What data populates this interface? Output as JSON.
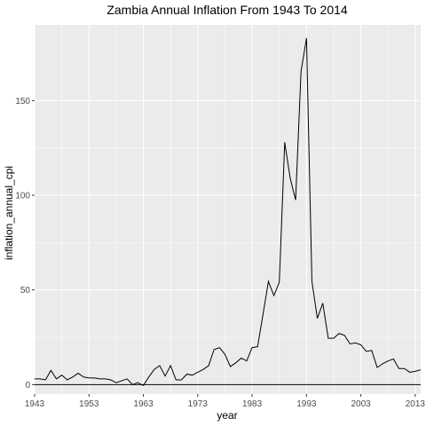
{
  "chart_data": {
    "type": "line",
    "title": "Zambia Annual Inflation From 1943 To 2014",
    "xlabel": "year",
    "ylabel": "inflation_annual_cpi",
    "xlim": [
      1943,
      2014
    ],
    "ylim": [
      -5,
      190
    ],
    "x_ticks": [
      1943,
      1953,
      1963,
      1973,
      1983,
      1993,
      2003,
      2013
    ],
    "x_tick_labels": [
      "1943",
      "1953",
      "1963",
      "1973",
      "1983",
      "1993",
      "2003",
      "2013"
    ],
    "y_ticks": [
      0,
      50,
      100,
      150
    ],
    "y_tick_labels": [
      "0",
      "50",
      "100",
      "150"
    ],
    "grid": true,
    "background": "#ebebeb",
    "grid_color": "#ffffff",
    "line_color": "#000000",
    "reference_line_y": 0,
    "series": [
      {
        "x": [
          1943,
          1944,
          1945,
          1946,
          1947,
          1948,
          1949,
          1950,
          1951,
          1952,
          1953,
          1954,
          1955,
          1956,
          1957,
          1958,
          1959,
          1960,
          1961,
          1962,
          1963,
          1964,
          1965,
          1966,
          1967,
          1968,
          1969,
          1970,
          1971,
          1972,
          1973,
          1974,
          1975,
          1976,
          1977,
          1978,
          1979,
          1980,
          1981,
          1982,
          1983,
          1984,
          1985,
          1986,
          1987,
          1988,
          1989,
          1990,
          1991,
          1992,
          1993,
          1994,
          1995,
          1996,
          1997,
          1998,
          1999,
          2000,
          2001,
          2002,
          2003,
          2004,
          2005,
          2006,
          2007,
          2008,
          2009,
          2010,
          2011,
          2012,
          2013,
          2014
        ],
        "values": [
          3,
          3,
          2.5,
          7.5,
          3,
          5,
          2.5,
          4,
          6,
          4,
          3.5,
          3.5,
          3,
          3,
          2.5,
          1,
          2,
          3,
          0,
          1,
          -0.5,
          4,
          8,
          10,
          4.5,
          10,
          2.5,
          2.5,
          5.5,
          5,
          6.5,
          8,
          10,
          18.5,
          19.5,
          16,
          9.5,
          11.5,
          14,
          12.5,
          19.5,
          20,
          37,
          54.5,
          47,
          54,
          128,
          109,
          97.5,
          165.5,
          183,
          54.5,
          35,
          43,
          24.5,
          24.5,
          27,
          26,
          21.5,
          22,
          21,
          17.5,
          18,
          9,
          11,
          12.5,
          13.5,
          8.5,
          8.5,
          6.5,
          7,
          7.8
        ]
      }
    ]
  }
}
